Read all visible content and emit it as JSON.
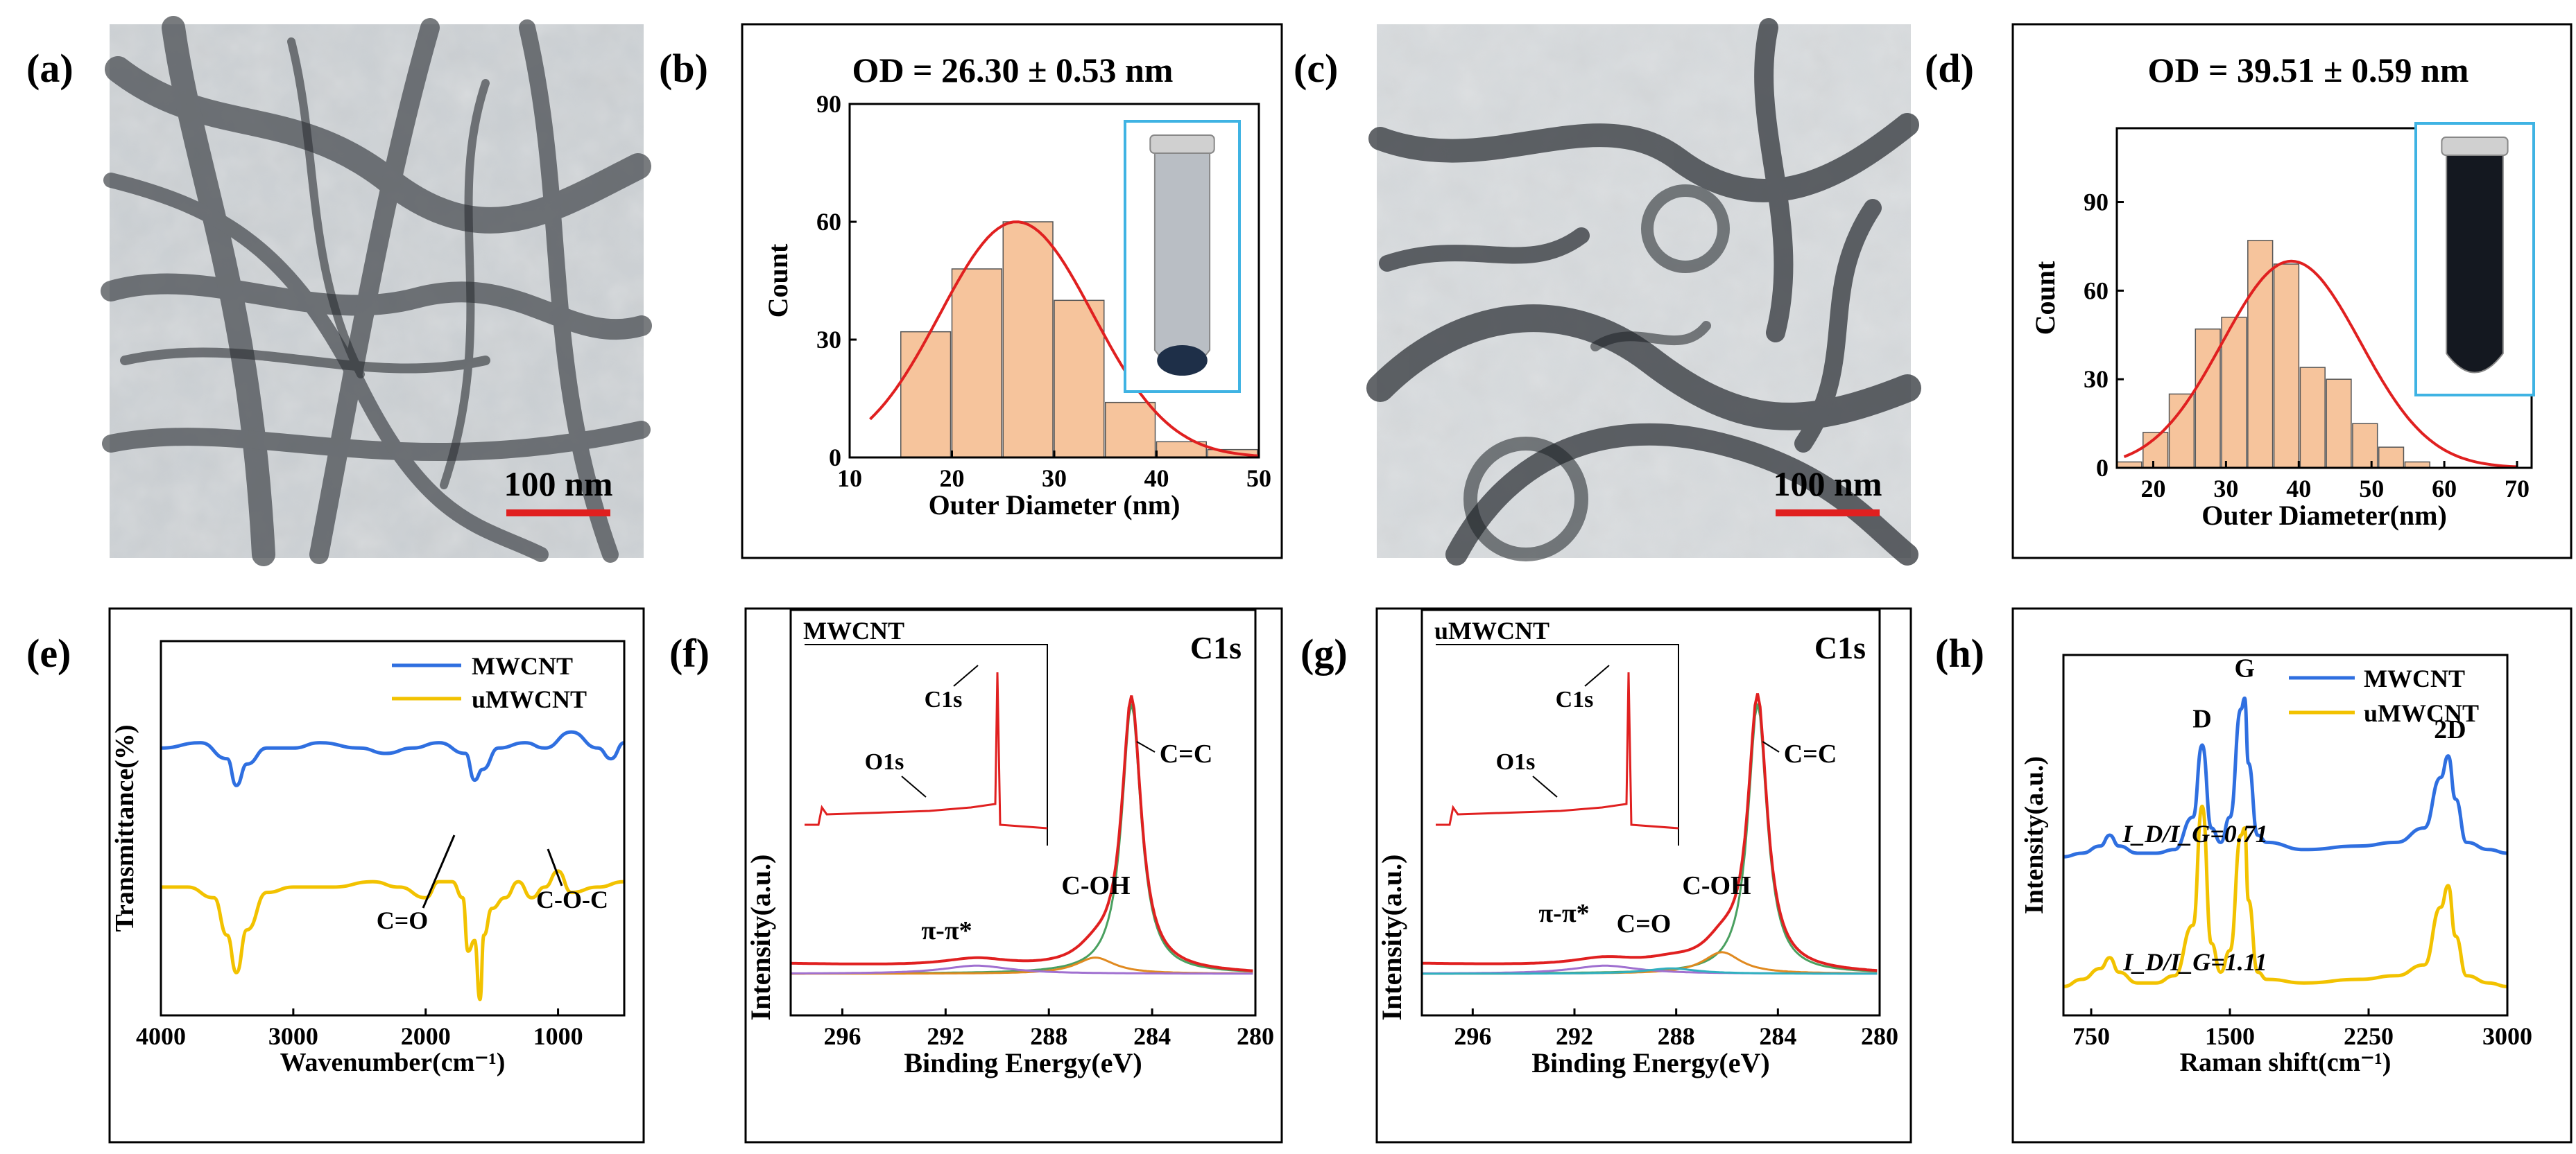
{
  "panels": {
    "a": {
      "label": "(a)",
      "scale_bar": "100 nm"
    },
    "b": {
      "label": "(b)"
    },
    "c": {
      "label": "(c)",
      "scale_bar": "100 nm"
    },
    "d": {
      "label": "(d)"
    },
    "e": {
      "label": "(e)"
    },
    "f": {
      "label": "(f)"
    },
    "g": {
      "label": "(g)"
    },
    "h": {
      "label": "(h)"
    }
  },
  "colors": {
    "blue": "#2f6fe0",
    "yellow": "#f2c200",
    "red": "#e02020",
    "green": "#4aa060",
    "bar": "#f6c49c",
    "inset_frame": "#3fb3e3",
    "orange": "#e08a20",
    "purple": "#a070d0",
    "cyan": "#30b0c0"
  },
  "chart_data": [
    {
      "id": "b",
      "type": "bar",
      "title": "OD = 26.30 ± 0.53 nm",
      "xlabel": "Outer Diameter (nm)",
      "ylabel": "Count",
      "xlim": [
        10,
        50
      ],
      "ylim": [
        0,
        90
      ],
      "xticks": [
        "10",
        "20",
        "30",
        "40",
        "50"
      ],
      "yticks": [
        "0",
        "30",
        "60",
        "90"
      ],
      "bin_width": 5,
      "x": [
        17.5,
        22.5,
        27.5,
        32.5,
        37.5,
        42.5,
        47.5
      ],
      "values": [
        32,
        48,
        60,
        40,
        14,
        4,
        2
      ],
      "fit": {
        "center": 26.3,
        "amplitude": 60,
        "sigma": 7.5,
        "range": [
          12,
          50
        ]
      }
    },
    {
      "id": "d",
      "type": "bar",
      "title": "OD = 39.51 ± 0.59 nm",
      "xlabel": "Outer Diameter(nm)",
      "ylabel": "Count",
      "xlim": [
        15,
        72
      ],
      "ylim": [
        0,
        115
      ],
      "xticks": [
        "20",
        "30",
        "40",
        "50",
        "60",
        "70"
      ],
      "yticks": [
        "0",
        "30",
        "60",
        "90"
      ],
      "bin_width": 3.6,
      "x": [
        16.8,
        20.4,
        24,
        27.6,
        31.2,
        34.8,
        38.4,
        42,
        45.6,
        49.2,
        52.8,
        56.4,
        60,
        63.6,
        67.2
      ],
      "values": [
        2,
        12,
        25,
        47,
        51,
        77,
        69,
        34,
        30,
        15,
        7,
        2,
        0,
        0,
        0
      ],
      "fit": {
        "center": 39,
        "amplitude": 70,
        "sigma": 9.5,
        "range": [
          16,
          70
        ]
      }
    },
    {
      "id": "e",
      "type": "line",
      "xlabel": "Wavenumber(cm⁻¹)",
      "ylabel": "Transmittance(%)",
      "xlim": [
        4000,
        500
      ],
      "xticks": [
        "4000",
        "3000",
        "2000",
        "1000"
      ],
      "series": [
        {
          "name": "MWCNT",
          "x": [
            4000,
            3700,
            3500,
            3430,
            3350,
            3200,
            3000,
            2800,
            2500,
            2300,
            2100,
            1900,
            1700,
            1630,
            1570,
            1450,
            1250,
            1100,
            900,
            700,
            600,
            500
          ],
          "y": [
            50,
            51,
            48,
            43,
            47,
            50,
            50,
            51,
            50,
            49,
            50,
            51,
            49,
            44,
            46,
            50,
            51,
            50,
            53,
            50,
            48,
            51
          ]
        },
        {
          "name": "uMWCNT",
          "x": [
            4000,
            3800,
            3600,
            3500,
            3430,
            3350,
            3200,
            3000,
            2700,
            2400,
            2200,
            2000,
            1900,
            1800,
            1720,
            1680,
            1630,
            1590,
            1560,
            1500,
            1400,
            1300,
            1200,
            1100,
            1000,
            900,
            700,
            500
          ],
          "y": [
            24,
            24,
            22,
            15,
            8,
            16,
            23,
            24,
            24,
            25,
            24,
            22,
            25,
            25,
            22,
            12,
            14,
            3,
            15,
            20,
            22,
            25,
            22,
            24,
            27,
            23,
            24,
            25
          ]
        }
      ],
      "ylim": [
        0,
        70
      ],
      "annotations": [
        "C=O",
        "C-O-C"
      ]
    },
    {
      "id": "f",
      "type": "line",
      "xlabel": "Binding Energy(eV)",
      "ylabel": "Intensity(a.u.)",
      "xlim": [
        298,
        280
      ],
      "xticks": [
        "296",
        "292",
        "288",
        "284",
        "280"
      ],
      "peak_label": "C1s",
      "annotations": [
        "C=C",
        "C-OH",
        "π-π*"
      ],
      "inset": {
        "title": "MWCNT",
        "labels": [
          "C1s",
          "O1s"
        ]
      }
    },
    {
      "id": "g",
      "type": "line",
      "xlabel": "Binding Energy(eV)",
      "ylabel": "Intensity(a.u.)",
      "xlim": [
        298,
        280
      ],
      "xticks": [
        "296",
        "292",
        "288",
        "284",
        "280"
      ],
      "peak_label": "C1s",
      "annotations": [
        "C=C",
        "C-OH",
        "C=O",
        "π-π*"
      ],
      "inset": {
        "title": "uMWCNT",
        "labels": [
          "C1s",
          "O1s"
        ]
      }
    },
    {
      "id": "h",
      "type": "line",
      "xlabel": "Raman shift(cm⁻¹)",
      "ylabel": "Intensity(a.u.)",
      "xlim": [
        600,
        3000
      ],
      "xticks": [
        "750",
        "1500",
        "2250",
        "3000"
      ],
      "series": [
        {
          "name": "MWCNT",
          "x": [
            600,
            700,
            800,
            850,
            900,
            1000,
            1100,
            1200,
            1300,
            1350,
            1400,
            1450,
            1500,
            1560,
            1580,
            1600,
            1650,
            1700,
            1900,
            2200,
            2400,
            2550,
            2640,
            2680,
            2720,
            2780,
            2900,
            3000
          ],
          "y": [
            44,
            45,
            47,
            50,
            47,
            45,
            45,
            46,
            55,
            75,
            52,
            48,
            55,
            85,
            88,
            70,
            50,
            48,
            46,
            47,
            48,
            52,
            66,
            72,
            60,
            48,
            46,
            45
          ]
        },
        {
          "name": "uMWCNT",
          "x": [
            600,
            700,
            800,
            850,
            900,
            1000,
            1100,
            1200,
            1300,
            1350,
            1400,
            1450,
            1500,
            1560,
            1580,
            1600,
            1650,
            1700,
            1900,
            2200,
            2400,
            2550,
            2640,
            2680,
            2720,
            2780,
            2900,
            3000
          ],
          "y": [
            8,
            10,
            13,
            16,
            12,
            9,
            9,
            11,
            25,
            58,
            20,
            12,
            18,
            50,
            52,
            32,
            12,
            10,
            9,
            10,
            11,
            14,
            30,
            36,
            22,
            11,
            9,
            8
          ]
        }
      ],
      "ylim": [
        0,
        100
      ],
      "annotations": [
        "D",
        "G",
        "2D",
        "I_D/I_G=0.71",
        "I_D/I_G=1.11"
      ]
    }
  ]
}
